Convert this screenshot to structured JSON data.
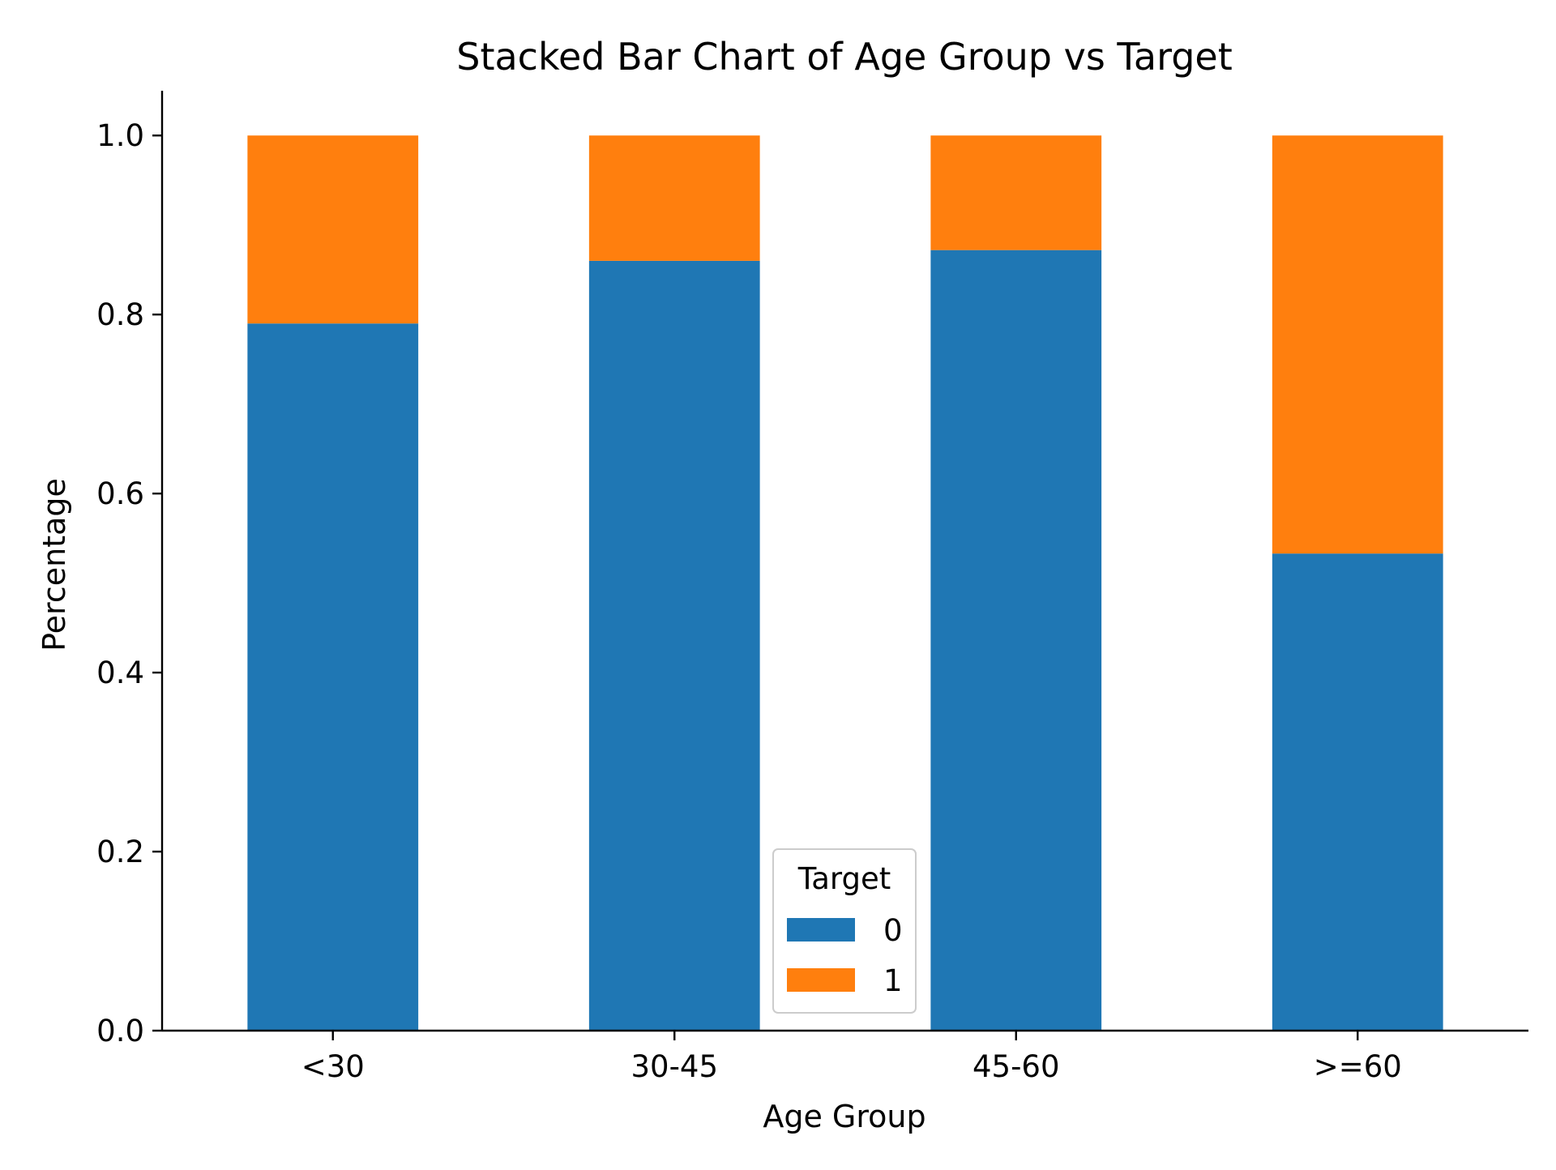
{
  "chart_data": {
    "type": "bar",
    "stacked": true,
    "title": "Stacked Bar Chart of Age Group vs Target",
    "xlabel": "Age Group",
    "ylabel": "Percentage",
    "categories": [
      "<30",
      "30-45",
      "45-60",
      ">=60"
    ],
    "series": [
      {
        "name": "0",
        "color": "#1f77b4",
        "values": [
          0.79,
          0.86,
          0.872,
          0.533
        ]
      },
      {
        "name": "1",
        "color": "#ff7f0e",
        "values": [
          0.21,
          0.14,
          0.128,
          0.467
        ]
      }
    ],
    "ylim": [
      0,
      1.05
    ],
    "yticks": [
      "0.0",
      "0.2",
      "0.4",
      "0.6",
      "0.8",
      "1.0"
    ],
    "grid": false,
    "legend": {
      "title": "Target",
      "placement": "bottom-center"
    }
  }
}
